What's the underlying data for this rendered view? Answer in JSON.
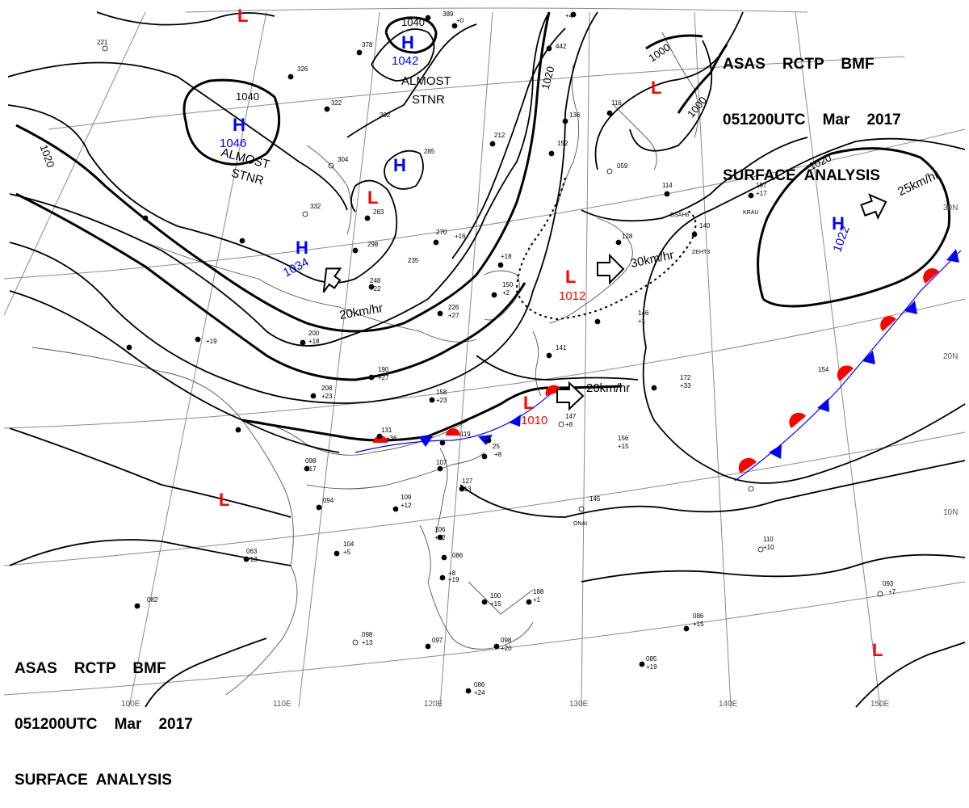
{
  "header": {
    "line1": "ASAS    RCTP    BMF",
    "line2": "051200UTC    Mar    2017",
    "line3": "SURFACE  ANALYSIS"
  },
  "pressure_centers": [
    {
      "kind": "H",
      "value": "1046",
      "color": "#0000ff"
    },
    {
      "kind": "H",
      "value": "1042",
      "color": "#0000ff"
    },
    {
      "kind": "H",
      "value": "",
      "color": "#0000ff"
    },
    {
      "kind": "H",
      "value": "1034",
      "color": "#0000ff"
    },
    {
      "kind": "H",
      "value": "1022",
      "color": "#0000ff"
    },
    {
      "kind": "L",
      "value": "",
      "color": "#ff0000"
    },
    {
      "kind": "L",
      "value": "",
      "color": "#ff0000"
    },
    {
      "kind": "L",
      "value": "1012",
      "color": "#ff0000"
    },
    {
      "kind": "L",
      "value": "",
      "color": "#ff0000"
    },
    {
      "kind": "L",
      "value": "1010",
      "color": "#ff0000"
    },
    {
      "kind": "L",
      "value": "",
      "color": "#ff0000"
    },
    {
      "kind": "L",
      "value": "",
      "color": "#ff0000"
    }
  ],
  "annotations": {
    "almost_stnr_1": "ALMOST",
    "stnr_1": "STNR",
    "almost_stnr_2": "ALMOST",
    "stnr_2": "STNR",
    "motion_1": "20km/hr",
    "motion_2": "30km/hr",
    "motion_3": "25km/hr",
    "motion_4": "20km/hr"
  },
  "isobar_labels": [
    "1040",
    "1040",
    "1020",
    "1020",
    "1000",
    "1000",
    "1020"
  ],
  "latitude_labels": [
    "30N",
    "20N",
    "10N"
  ],
  "longitude_labels": [
    "100E",
    "110E",
    "120E",
    "130E",
    "140E",
    "150E"
  ],
  "station_codes": [
    "DSAH6",
    "ZEHT3",
    "KRAU",
    "ONAI"
  ],
  "colors": {
    "high": "#0000ff",
    "low": "#ff0000",
    "cold_front": "#0000ff",
    "warm_front": "#ff0000",
    "isobar": "#000000",
    "grid": "#888888"
  }
}
